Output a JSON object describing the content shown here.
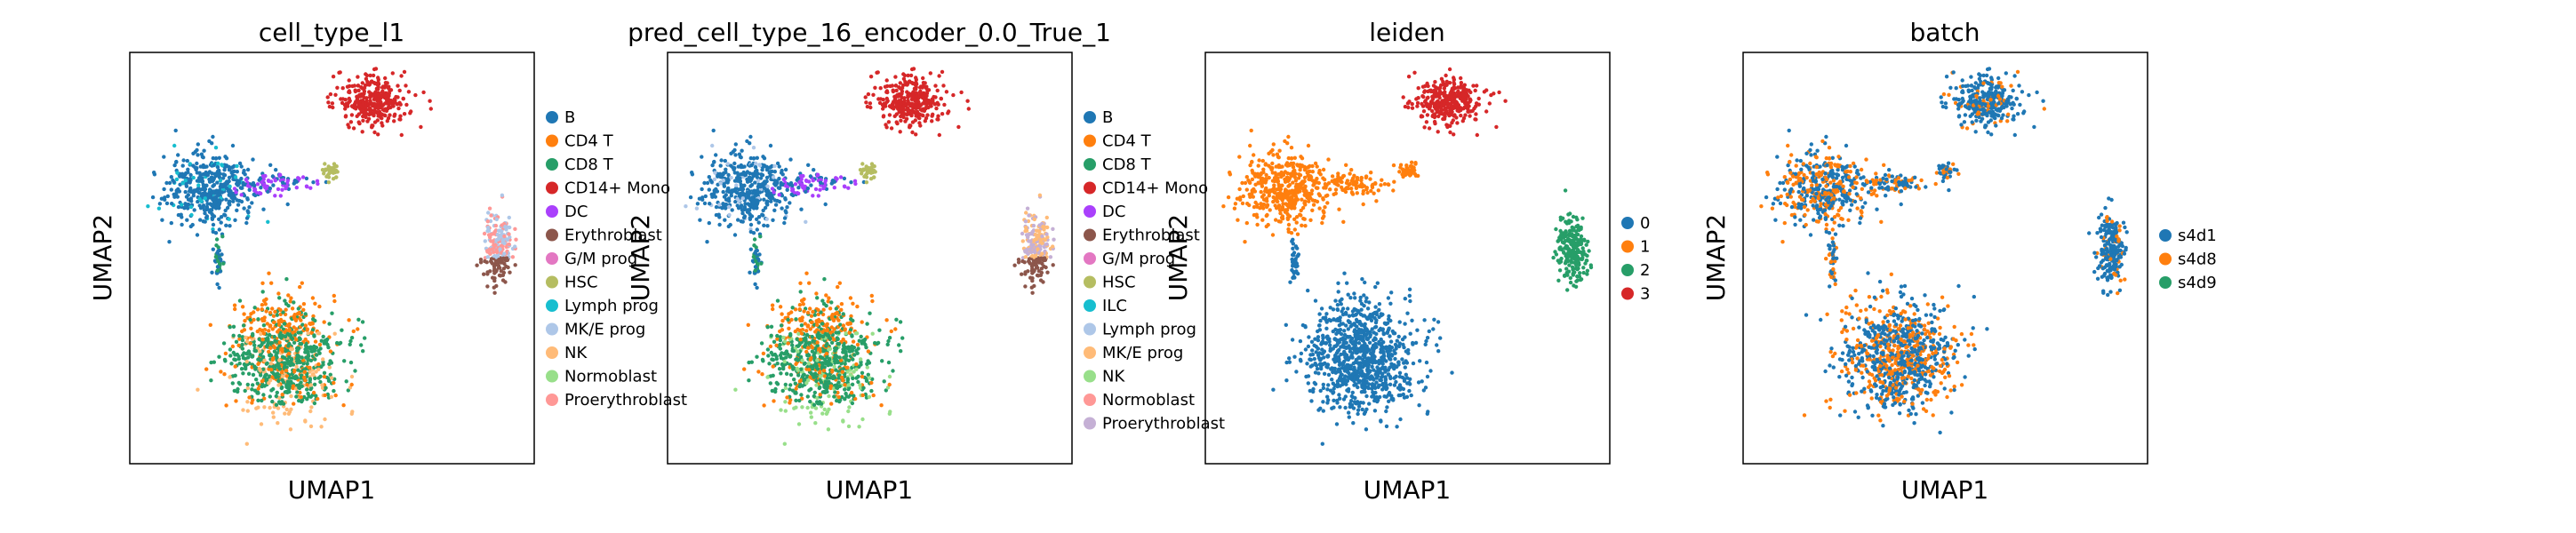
{
  "chart_data": [
    {
      "type": "scatter",
      "title": "cell_type_l1",
      "xlabel": "UMAP1",
      "ylabel": "UMAP2",
      "legend": "right",
      "categories": [
        {
          "label": "B",
          "color": "#1f77b4"
        },
        {
          "label": "CD4 T",
          "color": "#ff7f0e"
        },
        {
          "label": "CD8 T",
          "color": "#279e68"
        },
        {
          "label": "CD14+ Mono",
          "color": "#d62728"
        },
        {
          "label": "DC",
          "color": "#aa40fc"
        },
        {
          "label": "Erythroblast",
          "color": "#8c564b"
        },
        {
          "label": "G/M prog",
          "color": "#e377c2"
        },
        {
          "label": "HSC",
          "color": "#b5bd61"
        },
        {
          "label": "Lymph prog",
          "color": "#17becf"
        },
        {
          "label": "MK/E prog",
          "color": "#aec7e8"
        },
        {
          "label": "NK",
          "color": "#ffbb78"
        },
        {
          "label": "Normoblast",
          "color": "#98df8a"
        },
        {
          "label": "Proerythroblast",
          "color": "#ff9896"
        }
      ]
    },
    {
      "type": "scatter",
      "title": "pred_cell_type_16_encoder_0.0_True_1",
      "xlabel": "UMAP1",
      "ylabel": "UMAP2",
      "legend": "right",
      "categories": [
        {
          "label": "B",
          "color": "#1f77b4"
        },
        {
          "label": "CD4 T",
          "color": "#ff7f0e"
        },
        {
          "label": "CD8 T",
          "color": "#279e68"
        },
        {
          "label": "CD14+ Mono",
          "color": "#d62728"
        },
        {
          "label": "DC",
          "color": "#aa40fc"
        },
        {
          "label": "Erythroblast",
          "color": "#8c564b"
        },
        {
          "label": "G/M prog",
          "color": "#e377c2"
        },
        {
          "label": "HSC",
          "color": "#b5bd61"
        },
        {
          "label": "ILC",
          "color": "#17becf"
        },
        {
          "label": "Lymph prog",
          "color": "#aec7e8"
        },
        {
          "label": "MK/E prog",
          "color": "#ffbb78"
        },
        {
          "label": "NK",
          "color": "#98df8a"
        },
        {
          "label": "Normoblast",
          "color": "#ff9896"
        },
        {
          "label": "Proerythroblast",
          "color": "#c5b0d5"
        }
      ]
    },
    {
      "type": "scatter",
      "title": "leiden",
      "xlabel": "UMAP1",
      "ylabel": "UMAP2",
      "legend": "right",
      "categories": [
        {
          "label": "0",
          "color": "#1f77b4"
        },
        {
          "label": "1",
          "color": "#ff7f0e"
        },
        {
          "label": "2",
          "color": "#279e68"
        },
        {
          "label": "3",
          "color": "#d62728"
        }
      ]
    },
    {
      "type": "scatter",
      "title": "batch",
      "xlabel": "UMAP1",
      "ylabel": "UMAP2",
      "legend": "right",
      "categories": [
        {
          "label": "s4d1",
          "color": "#1f77b4"
        },
        {
          "label": "s4d8",
          "color": "#ff7f0e"
        },
        {
          "label": "s4d9",
          "color": "#279e68"
        }
      ]
    }
  ]
}
